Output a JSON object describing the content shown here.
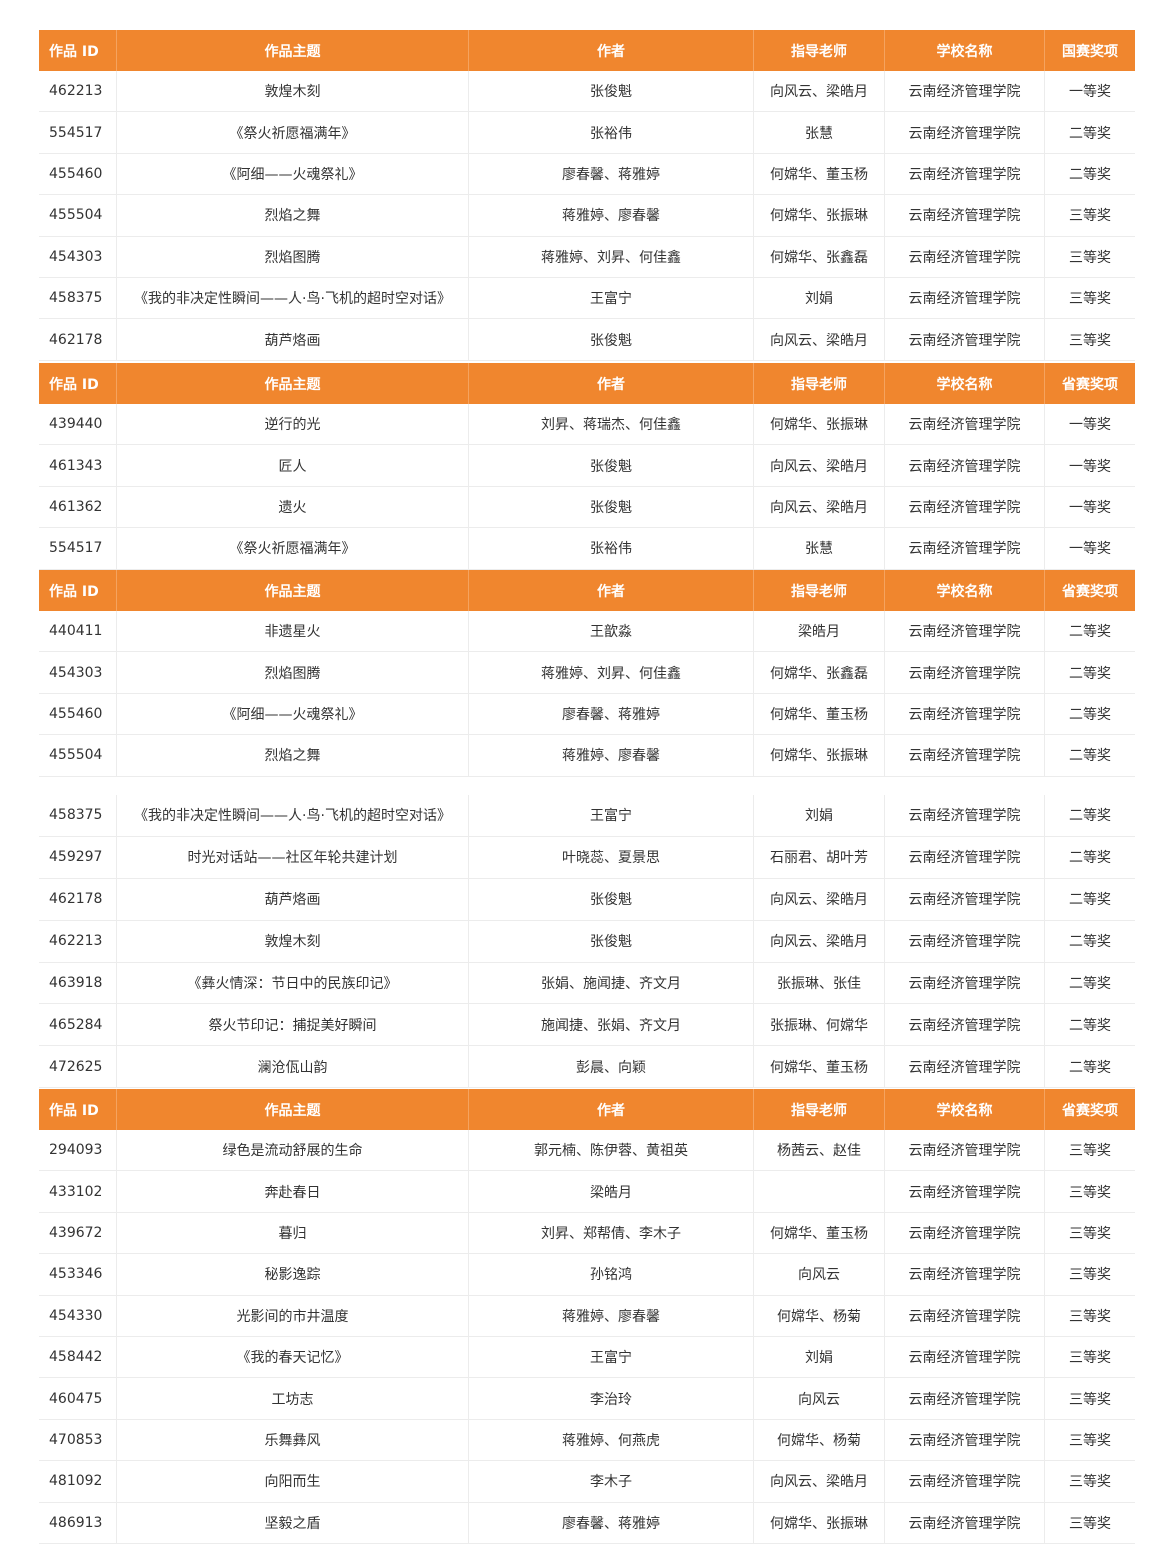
{
  "segments": [
    {
      "header": [
        "作品 ID",
        "作品主题",
        "作者",
        "指导老师",
        "学校名称",
        "国赛奖项"
      ],
      "rows": [
        [
          "462213",
          "敦煌木刻",
          "张俊魁",
          "向风云、梁皓月",
          "云南经济管理学院",
          "一等奖"
        ],
        [
          "554517",
          "《祭火祈愿福满年》",
          "张裕伟",
          "张慧",
          "云南经济管理学院",
          "二等奖"
        ],
        [
          "455460",
          "《阿细——火魂祭礼》",
          "廖春馨、蒋雅婷",
          "何嫦华、董玉杨",
          "云南经济管理学院",
          "二等奖"
        ],
        [
          "455504",
          "烈焰之舞",
          "蒋雅婷、廖春馨",
          "何嫦华、张振琳",
          "云南经济管理学院",
          "三等奖"
        ],
        [
          "454303",
          "烈焰图腾",
          "蒋雅婷、刘昇、何佳鑫",
          "何嫦华、张鑫磊",
          "云南经济管理学院",
          "三等奖"
        ],
        [
          "458375",
          "《我的非决定性瞬间——人·鸟·飞机的超时空对话》",
          "王富宁",
          "刘娟",
          "云南经济管理学院",
          "三等奖"
        ],
        [
          "462178",
          "葫芦烙画",
          "张俊魁",
          "向风云、梁皓月",
          "云南经济管理学院",
          "三等奖"
        ]
      ]
    },
    {
      "header": [
        "作品 ID",
        "作品主题",
        "作者",
        "指导老师",
        "学校名称",
        "省赛奖项"
      ],
      "rows": [
        [
          "439440",
          "逆行的光",
          "刘昇、蒋瑞杰、何佳鑫",
          "何嫦华、张振琳",
          "云南经济管理学院",
          "一等奖"
        ],
        [
          "461343",
          "匠人",
          "张俊魁",
          "向风云、梁皓月",
          "云南经济管理学院",
          "一等奖"
        ],
        [
          "461362",
          "遗火",
          "张俊魁",
          "向风云、梁皓月",
          "云南经济管理学院",
          "一等奖"
        ],
        [
          "554517",
          "《祭火祈愿福满年》",
          "张裕伟",
          "张慧",
          "云南经济管理学院",
          "一等奖"
        ]
      ]
    },
    {
      "header": [
        "作品 ID",
        "作品主题",
        "作者",
        "指导老师",
        "学校名称",
        "省赛奖项"
      ],
      "rows": [
        [
          "440411",
          "非遗星火",
          "王歆淼",
          "梁皓月",
          "云南经济管理学院",
          "二等奖"
        ],
        [
          "454303",
          "烈焰图腾",
          "蒋雅婷、刘昇、何佳鑫",
          "何嫦华、张鑫磊",
          "云南经济管理学院",
          "二等奖"
        ],
        [
          "455460",
          "《阿细——火魂祭礼》",
          "廖春馨、蒋雅婷",
          "何嫦华、董玉杨",
          "云南经济管理学院",
          "二等奖"
        ],
        [
          "455504",
          "烈焰之舞",
          "蒋雅婷、廖春馨",
          "何嫦华、张振琳",
          "云南经济管理学院",
          "二等奖"
        ]
      ]
    },
    {
      "header": null,
      "rows": [
        [
          "458375",
          "《我的非决定性瞬间——人·鸟·飞机的超时空对话》",
          "王富宁",
          "刘娟",
          "云南经济管理学院",
          "二等奖"
        ],
        [
          "459297",
          "时光对话站——社区年轮共建计划",
          "叶晓蕊、夏景思",
          "石丽君、胡叶芳",
          "云南经济管理学院",
          "二等奖"
        ],
        [
          "462178",
          "葫芦烙画",
          "张俊魁",
          "向风云、梁皓月",
          "云南经济管理学院",
          "二等奖"
        ],
        [
          "462213",
          "敦煌木刻",
          "张俊魁",
          "向风云、梁皓月",
          "云南经济管理学院",
          "二等奖"
        ],
        [
          "463918",
          "《彝火情深：节日中的民族印记》",
          "张娟、施闻捷、齐文月",
          "张振琳、张佳",
          "云南经济管理学院",
          "二等奖"
        ],
        [
          "465284",
          "祭火节印记：捕捉美好瞬间",
          "施闻捷、张娟、齐文月",
          "张振琳、何嫦华",
          "云南经济管理学院",
          "二等奖"
        ],
        [
          "472625",
          "澜沧佤山韵",
          "彭晨、向颖",
          "何嫦华、董玉杨",
          "云南经济管理学院",
          "二等奖"
        ]
      ]
    },
    {
      "header": [
        "作品 ID",
        "作品主题",
        "作者",
        "指导老师",
        "学校名称",
        "省赛奖项"
      ],
      "rows": [
        [
          "294093",
          "绿色是流动舒展的生命",
          "郭元楠、陈伊蓉、黄祖英",
          "杨茜云、赵佳",
          "云南经济管理学院",
          "三等奖"
        ],
        [
          "433102",
          "奔赴春日",
          "梁皓月",
          "",
          "云南经济管理学院",
          "三等奖"
        ],
        [
          "439672",
          "暮归",
          "刘昇、郑帮倩、李木子",
          "何嫦华、董玉杨",
          "云南经济管理学院",
          "三等奖"
        ],
        [
          "453346",
          "秘影逸踪",
          "孙铭鸿",
          "向风云",
          "云南经济管理学院",
          "三等奖"
        ],
        [
          "454330",
          "光影间的市井温度",
          "蒋雅婷、廖春馨",
          "何嫦华、杨菊",
          "云南经济管理学院",
          "三等奖"
        ],
        [
          "458442",
          "《我的春天记忆》",
          "王富宁",
          "刘娟",
          "云南经济管理学院",
          "三等奖"
        ],
        [
          "460475",
          "工坊志",
          "李治玲",
          "向风云",
          "云南经济管理学院",
          "三等奖"
        ],
        [
          "470853",
          "乐舞彝风",
          "蒋雅婷、何燕虎",
          "何嫦华、杨菊",
          "云南经济管理学院",
          "三等奖"
        ],
        [
          "481092",
          "向阳而生",
          "李木子",
          "向风云、梁皓月",
          "云南经济管理学院",
          "三等奖"
        ],
        [
          "486913",
          "坚毅之盾",
          "廖春馨、蒋雅婷",
          "何嫦华、张振琳",
          "云南经济管理学院",
          "三等奖"
        ]
      ]
    }
  ]
}
